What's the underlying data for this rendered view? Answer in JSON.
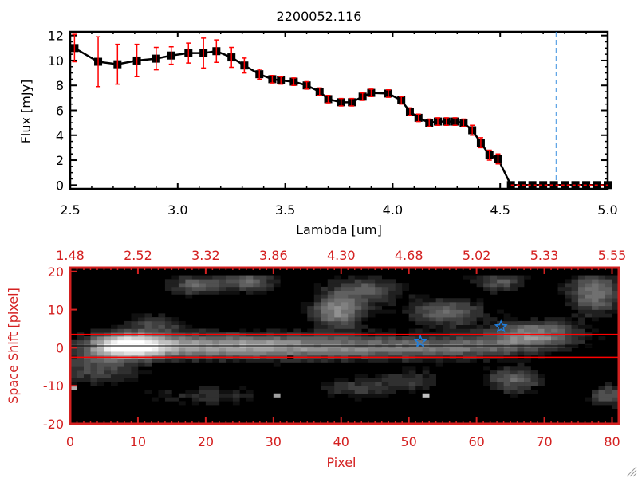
{
  "chart_data": [
    {
      "type": "line",
      "title": "2200052.116",
      "xlabel": "Lambda [um]",
      "ylabel": "Flux [mJy]",
      "xlim": [
        2.5,
        5.0
      ],
      "ylim": [
        -0.3,
        12.3
      ],
      "xticks": [
        "2.5",
        "3.0",
        "3.5",
        "4.0",
        "4.5",
        "5.0"
      ],
      "xtick_values": [
        2.5,
        3.0,
        3.5,
        4.0,
        4.5,
        5.0
      ],
      "yticks": [
        "0",
        "2",
        "4",
        "6",
        "8",
        "10",
        "12"
      ],
      "ytick_values": [
        0,
        2,
        4,
        6,
        8,
        10,
        12
      ],
      "series": [
        {
          "name": "flux",
          "x": [
            2.52,
            2.63,
            2.72,
            2.81,
            2.9,
            2.97,
            3.05,
            3.12,
            3.18,
            3.25,
            3.31,
            3.38,
            3.44,
            3.48,
            3.54,
            3.6,
            3.66,
            3.7,
            3.76,
            3.81,
            3.86,
            3.9,
            3.98,
            4.04,
            4.08,
            4.12,
            4.17,
            4.21,
            4.25,
            4.29,
            4.33,
            4.37,
            4.41,
            4.45,
            4.49,
            4.55,
            4.6,
            4.65,
            4.7,
            4.75,
            4.8,
            4.85,
            4.9,
            4.95,
            5.0
          ],
          "y": [
            11.0,
            9.9,
            9.7,
            10.0,
            10.15,
            10.4,
            10.6,
            10.6,
            10.75,
            10.25,
            9.6,
            8.9,
            8.5,
            8.4,
            8.3,
            8.0,
            7.5,
            6.9,
            6.65,
            6.65,
            7.1,
            7.4,
            7.35,
            6.8,
            5.9,
            5.4,
            5.0,
            5.1,
            5.1,
            5.1,
            5.0,
            4.4,
            3.4,
            2.4,
            2.1,
            0,
            0,
            0,
            0,
            0,
            0,
            0,
            0,
            0,
            0
          ],
          "err": [
            1.1,
            2.0,
            1.6,
            1.3,
            0.9,
            0.7,
            0.8,
            1.2,
            0.9,
            0.8,
            0.6,
            0.4,
            0.3,
            0.3,
            0.3,
            0.3,
            0.3,
            0.3,
            0.3,
            0.3,
            0.3,
            0.3,
            0.3,
            0.3,
            0.3,
            0.3,
            0.3,
            0.3,
            0.3,
            0.3,
            0.3,
            0.4,
            0.4,
            0.4,
            0.4,
            0,
            0,
            0,
            0,
            0,
            0,
            0,
            0,
            0,
            0
          ]
        }
      ],
      "reference_line": {
        "lambda": 4.76,
        "style": "dashed vertical"
      },
      "zero_line": {
        "flux": 0,
        "style": "dashed red"
      },
      "colors": {
        "line": "#000000",
        "errorbar": "#ff0000",
        "vline": "#3a8fe0"
      }
    },
    {
      "type": "heatmap",
      "xlabel": "Pixel",
      "ylabel": "Space Shift [pixel]",
      "xlim": [
        0,
        81
      ],
      "ylim": [
        -20,
        21
      ],
      "xticks": [
        "0",
        "10",
        "20",
        "30",
        "40",
        "50",
        "60",
        "70",
        "80"
      ],
      "xtick_values": [
        0,
        10,
        20,
        30,
        40,
        50,
        60,
        70,
        80
      ],
      "yticks": [
        "-20",
        "-10",
        "0",
        "10",
        "20"
      ],
      "ytick_values": [
        -20,
        -10,
        0,
        10,
        20
      ],
      "top_axis_label_values": [
        "1.48",
        "2.52",
        "3.32",
        "3.86",
        "4.30",
        "4.68",
        "5.02",
        "5.33",
        "5.55"
      ],
      "aperture_lines": [
        3,
        -3
      ],
      "center_line": 0,
      "markers": [
        {
          "x": 51.7,
          "y": 1.1,
          "shape": "star"
        },
        {
          "x": 63.6,
          "y": 5.0,
          "shape": "star"
        }
      ],
      "sources": [
        {
          "x": 8,
          "y": 0,
          "a": 1.0,
          "sx": 4,
          "sy": 2.3
        },
        {
          "x": 20,
          "y": 0,
          "a": 0.6,
          "sx": 10,
          "sy": 2.4
        },
        {
          "x": 40,
          "y": -0.5,
          "a": 0.5,
          "sx": 12,
          "sy": 2.4
        },
        {
          "x": 58,
          "y": -0.5,
          "a": 0.35,
          "sx": 8,
          "sy": 2
        },
        {
          "x": 68,
          "y": 3,
          "a": 0.6,
          "sx": 5,
          "sy": 2.5
        },
        {
          "x": 3,
          "y": -6,
          "a": 0.35,
          "sx": 5,
          "sy": 3
        },
        {
          "x": 12,
          "y": 6,
          "a": 0.3,
          "sx": 3,
          "sy": 2
        },
        {
          "x": 18,
          "y": 16,
          "a": 0.45,
          "sx": 3,
          "sy": 2
        },
        {
          "x": 26,
          "y": 17,
          "a": 0.45,
          "sx": 3,
          "sy": 2
        },
        {
          "x": 43,
          "y": 15,
          "a": 0.4,
          "sx": 4,
          "sy": 2.5
        },
        {
          "x": 39,
          "y": 9,
          "a": 0.6,
          "sx": 3,
          "sy": 3
        },
        {
          "x": 55,
          "y": 9,
          "a": 0.5,
          "sx": 4,
          "sy": 2.5
        },
        {
          "x": 63,
          "y": 17,
          "a": 0.4,
          "sx": 3,
          "sy": 2
        },
        {
          "x": 77,
          "y": 14,
          "a": 0.55,
          "sx": 3,
          "sy": 4
        },
        {
          "x": 50,
          "y": -9,
          "a": 0.3,
          "sx": 3,
          "sy": 2
        },
        {
          "x": 42,
          "y": -11,
          "a": 0.3,
          "sx": 4,
          "sy": 2
        },
        {
          "x": 65,
          "y": -9,
          "a": 0.45,
          "sx": 3,
          "sy": 2.5
        },
        {
          "x": 20,
          "y": -13,
          "a": 0.25,
          "sx": 6,
          "sy": 2
        },
        {
          "x": 79,
          "y": -13,
          "a": 0.45,
          "sx": 2,
          "sy": 2
        }
      ],
      "hot_pixels": [
        {
          "x": 52,
          "y": -13,
          "a": 0.85
        },
        {
          "x": 30,
          "y": -13,
          "a": 0.7
        },
        {
          "x": 0,
          "y": -11,
          "a": 0.8
        }
      ],
      "dead_pixels": [
        {
          "x": 32,
          "y": -3
        }
      ],
      "colors": {
        "axis": "#d42020",
        "aperture": "#ff0000",
        "marker": "#1e7fe0"
      }
    }
  ]
}
